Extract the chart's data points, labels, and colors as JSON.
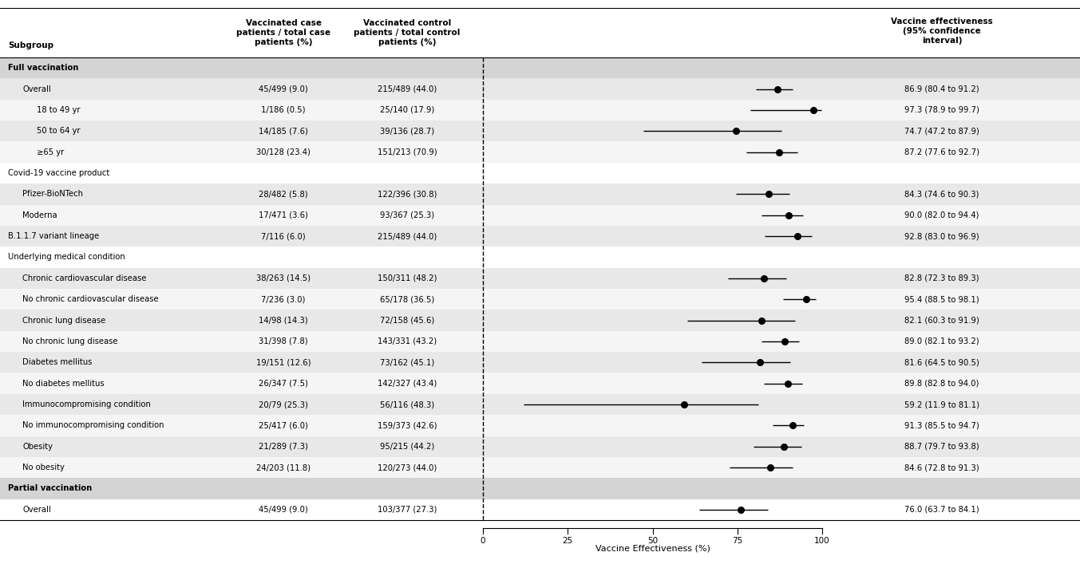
{
  "rows": [
    {
      "label": "Full vaccination",
      "indent": 0,
      "is_bold": true,
      "is_section": true,
      "bg": "#d4d4d4",
      "ve": null,
      "lo": null,
      "hi": null,
      "case_text": "",
      "control_text": "",
      "ve_text": ""
    },
    {
      "label": "Overall",
      "indent": 1,
      "is_bold": false,
      "is_section": false,
      "bg": "#e8e8e8",
      "ve": 86.9,
      "lo": 80.4,
      "hi": 91.2,
      "case_text": "45/499 (9.0)",
      "control_text": "215/489 (44.0)",
      "ve_text": "86.9 (80.4 to 91.2)"
    },
    {
      "label": "18 to 49 yr",
      "indent": 2,
      "is_bold": false,
      "is_section": false,
      "bg": "#f5f5f5",
      "ve": 97.3,
      "lo": 78.9,
      "hi": 99.7,
      "case_text": "1/186 (0.5)",
      "control_text": "25/140 (17.9)",
      "ve_text": "97.3 (78.9 to 99.7)"
    },
    {
      "label": "50 to 64 yr",
      "indent": 2,
      "is_bold": false,
      "is_section": false,
      "bg": "#e8e8e8",
      "ve": 74.7,
      "lo": 47.2,
      "hi": 87.9,
      "case_text": "14/185 (7.6)",
      "control_text": "39/136 (28.7)",
      "ve_text": "74.7 (47.2 to 87.9)"
    },
    {
      "label": "≥65 yr",
      "indent": 2,
      "is_bold": false,
      "is_section": false,
      "bg": "#f5f5f5",
      "ve": 87.2,
      "lo": 77.6,
      "hi": 92.7,
      "case_text": "30/128 (23.4)",
      "control_text": "151/213 (70.9)",
      "ve_text": "87.2 (77.6 to 92.7)"
    },
    {
      "label": "Covid-19 vaccine product",
      "indent": 0,
      "is_bold": false,
      "is_section": true,
      "bg": "#ffffff",
      "ve": null,
      "lo": null,
      "hi": null,
      "case_text": "",
      "control_text": "",
      "ve_text": ""
    },
    {
      "label": "Pfizer-BioNTech",
      "indent": 1,
      "is_bold": false,
      "is_section": false,
      "bg": "#e8e8e8",
      "ve": 84.3,
      "lo": 74.6,
      "hi": 90.3,
      "case_text": "28/482 (5.8)",
      "control_text": "122/396 (30.8)",
      "ve_text": "84.3 (74.6 to 90.3)"
    },
    {
      "label": "Moderna",
      "indent": 1,
      "is_bold": false,
      "is_section": false,
      "bg": "#f5f5f5",
      "ve": 90.0,
      "lo": 82.0,
      "hi": 94.4,
      "case_text": "17/471 (3.6)",
      "control_text": "93/367 (25.3)",
      "ve_text": "90.0 (82.0 to 94.4)"
    },
    {
      "label": "B.1.1.7 variant lineage",
      "indent": 0,
      "is_bold": false,
      "is_section": false,
      "bg": "#e8e8e8",
      "ve": 92.8,
      "lo": 83.0,
      "hi": 96.9,
      "case_text": "7/116 (6.0)",
      "control_text": "215/489 (44.0)",
      "ve_text": "92.8 (83.0 to 96.9)"
    },
    {
      "label": "Underlying medical condition",
      "indent": 0,
      "is_bold": false,
      "is_section": true,
      "bg": "#ffffff",
      "ve": null,
      "lo": null,
      "hi": null,
      "case_text": "",
      "control_text": "",
      "ve_text": ""
    },
    {
      "label": "Chronic cardiovascular disease",
      "indent": 1,
      "is_bold": false,
      "is_section": false,
      "bg": "#e8e8e8",
      "ve": 82.8,
      "lo": 72.3,
      "hi": 89.3,
      "case_text": "38/263 (14.5)",
      "control_text": "150/311 (48.2)",
      "ve_text": "82.8 (72.3 to 89.3)"
    },
    {
      "label": "No chronic cardiovascular disease",
      "indent": 1,
      "is_bold": false,
      "is_section": false,
      "bg": "#f5f5f5",
      "ve": 95.4,
      "lo": 88.5,
      "hi": 98.1,
      "case_text": "7/236 (3.0)",
      "control_text": "65/178 (36.5)",
      "ve_text": "95.4 (88.5 to 98.1)"
    },
    {
      "label": "Chronic lung disease",
      "indent": 1,
      "is_bold": false,
      "is_section": false,
      "bg": "#e8e8e8",
      "ve": 82.1,
      "lo": 60.3,
      "hi": 91.9,
      "case_text": "14/98 (14.3)",
      "control_text": "72/158 (45.6)",
      "ve_text": "82.1 (60.3 to 91.9)"
    },
    {
      "label": "No chronic lung disease",
      "indent": 1,
      "is_bold": false,
      "is_section": false,
      "bg": "#f5f5f5",
      "ve": 89.0,
      "lo": 82.1,
      "hi": 93.2,
      "case_text": "31/398 (7.8)",
      "control_text": "143/331 (43.2)",
      "ve_text": "89.0 (82.1 to 93.2)"
    },
    {
      "label": "Diabetes mellitus",
      "indent": 1,
      "is_bold": false,
      "is_section": false,
      "bg": "#e8e8e8",
      "ve": 81.6,
      "lo": 64.5,
      "hi": 90.5,
      "case_text": "19/151 (12.6)",
      "control_text": "73/162 (45.1)",
      "ve_text": "81.6 (64.5 to 90.5)"
    },
    {
      "label": "No diabetes mellitus",
      "indent": 1,
      "is_bold": false,
      "is_section": false,
      "bg": "#f5f5f5",
      "ve": 89.8,
      "lo": 82.8,
      "hi": 94.0,
      "case_text": "26/347 (7.5)",
      "control_text": "142/327 (43.4)",
      "ve_text": "89.8 (82.8 to 94.0)"
    },
    {
      "label": "Immunocompromising condition",
      "indent": 1,
      "is_bold": false,
      "is_section": false,
      "bg": "#e8e8e8",
      "ve": 59.2,
      "lo": 11.9,
      "hi": 81.1,
      "case_text": "20/79 (25.3)",
      "control_text": "56/116 (48.3)",
      "ve_text": "59.2 (11.9 to 81.1)"
    },
    {
      "label": "No immunocompromising condition",
      "indent": 1,
      "is_bold": false,
      "is_section": false,
      "bg": "#f5f5f5",
      "ve": 91.3,
      "lo": 85.5,
      "hi": 94.7,
      "case_text": "25/417 (6.0)",
      "control_text": "159/373 (42.6)",
      "ve_text": "91.3 (85.5 to 94.7)"
    },
    {
      "label": "Obesity",
      "indent": 1,
      "is_bold": false,
      "is_section": false,
      "bg": "#e8e8e8",
      "ve": 88.7,
      "lo": 79.7,
      "hi": 93.8,
      "case_text": "21/289 (7.3)",
      "control_text": "95/215 (44.2)",
      "ve_text": "88.7 (79.7 to 93.8)"
    },
    {
      "label": "No obesity",
      "indent": 1,
      "is_bold": false,
      "is_section": false,
      "bg": "#f5f5f5",
      "ve": 84.6,
      "lo": 72.8,
      "hi": 91.3,
      "case_text": "24/203 (11.8)",
      "control_text": "120/273 (44.0)",
      "ve_text": "84.6 (72.8 to 91.3)"
    },
    {
      "label": "Partial vaccination",
      "indent": 0,
      "is_bold": true,
      "is_section": true,
      "bg": "#d4d4d4",
      "ve": null,
      "lo": null,
      "hi": null,
      "case_text": "",
      "control_text": "",
      "ve_text": ""
    },
    {
      "label": "Overall",
      "indent": 1,
      "is_bold": false,
      "is_section": false,
      "bg": "#ffffff",
      "ve": 76.0,
      "lo": 63.7,
      "hi": 84.1,
      "case_text": "45/499 (9.0)",
      "control_text": "103/377 (27.3)",
      "ve_text": "76.0 (63.7 to 84.1)"
    }
  ],
  "col_header_case": "Vaccinated case\npatients / total case\npatients (%)",
  "col_header_control": "Vaccinated control\npatients / total control\npatients (%)",
  "col_header_ve": "Vaccine effectiveness\n(95% confidence\ninterval)",
  "col_header_subgroup": "Subgroup",
  "xlabel": "Vaccine Effectiveness (%)",
  "xmin": 0,
  "xmax": 100,
  "xticks": [
    0,
    25,
    50,
    75,
    100
  ],
  "fig_width": 13.53,
  "fig_height": 7.07,
  "dpi": 100
}
